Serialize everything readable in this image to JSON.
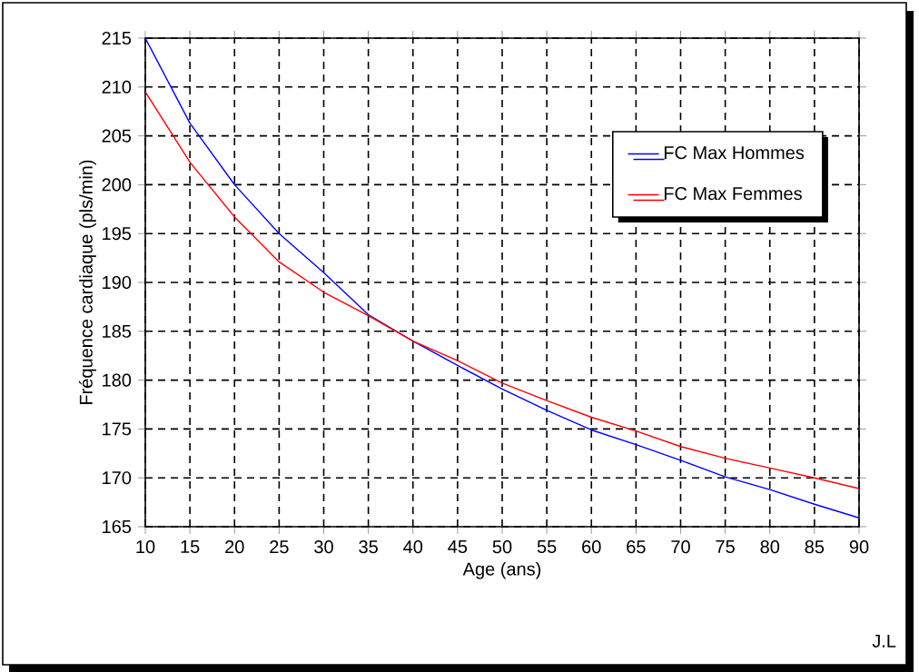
{
  "chart_data": {
    "type": "line",
    "xlabel": "Age (ans)",
    "ylabel": "Fréquence cardiaque (pls/min)",
    "x": [
      10,
      15,
      20,
      25,
      30,
      35,
      40,
      45,
      50,
      55,
      60,
      65,
      70,
      75,
      80,
      85,
      90
    ],
    "series": [
      {
        "name": "FC Max Hommes",
        "color": "#0000ff",
        "values": [
          215,
          206.3,
          200,
          195,
          191,
          186.7,
          184,
          181.5,
          179.1,
          176.9,
          174.9,
          173.4,
          171.8,
          170.1,
          168.8,
          167.3,
          165.9
        ]
      },
      {
        "name": "FC Max Femmes",
        "color": "#ff0000",
        "values": [
          209.5,
          202.3,
          196.7,
          192.1,
          189,
          186.6,
          184,
          182,
          179.7,
          177.9,
          176.2,
          174.8,
          173.2,
          172,
          171,
          170,
          168.9
        ]
      }
    ],
    "xlim": [
      10,
      90
    ],
    "ylim": [
      165,
      215
    ],
    "xticks": [
      10,
      15,
      20,
      25,
      30,
      35,
      40,
      45,
      50,
      55,
      60,
      65,
      70,
      75,
      80,
      85,
      90
    ],
    "yticks": [
      165,
      170,
      175,
      180,
      185,
      190,
      195,
      200,
      205,
      210,
      215
    ],
    "grid": true,
    "legend": "top right",
    "annotations": [
      "J.L"
    ]
  }
}
